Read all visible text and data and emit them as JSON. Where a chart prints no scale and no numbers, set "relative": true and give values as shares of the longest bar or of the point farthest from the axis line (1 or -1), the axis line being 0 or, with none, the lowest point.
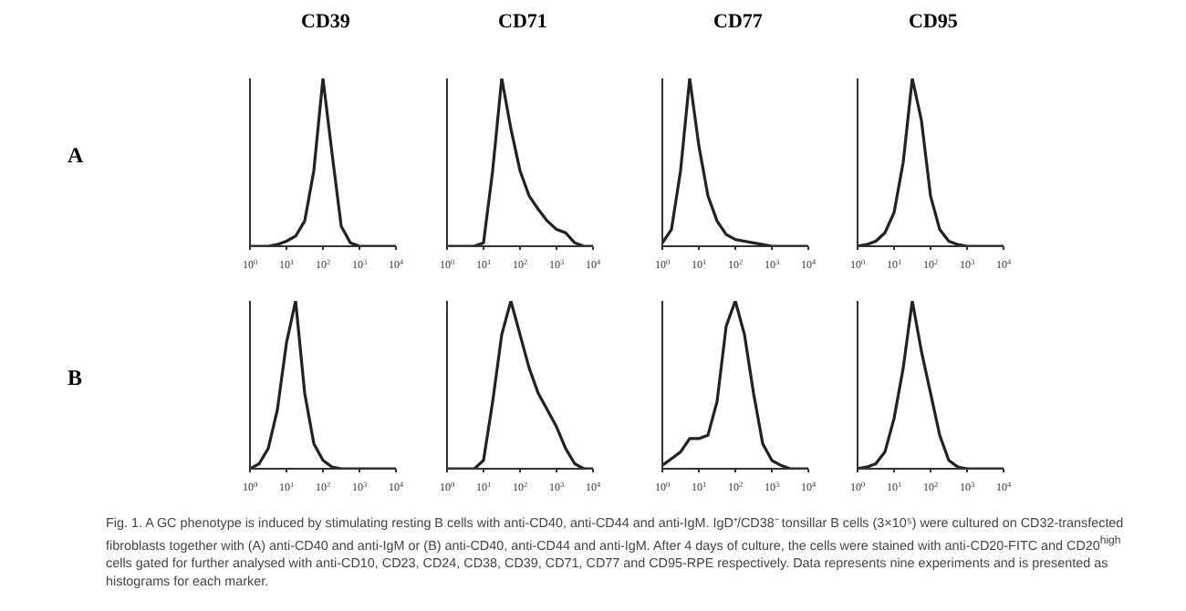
{
  "chart_data": [
    {
      "type": "line",
      "title": "CD39",
      "ylabel": "A",
      "relative": true,
      "log": "x",
      "xlim": [
        1,
        10000
      ],
      "xticks": [
        {
          "value": 1,
          "label": "10$^{0}$"
        },
        {
          "value": 10,
          "label": "10$^{1}$"
        },
        {
          "value": 100,
          "label": "10$^{2}$"
        },
        {
          "value": 1000,
          "label": "10$^{3}$"
        },
        {
          "value": 10000,
          "label": "10$^{4}$"
        }
      ],
      "x": [
        1,
        1.78,
        3.16,
        5.62,
        10,
        17.8,
        31.6,
        56.2,
        100,
        178,
        316,
        562,
        1000,
        1778,
        3162,
        5623,
        10000
      ],
      "color": "#222222",
      "values": [
        0,
        0,
        0,
        0.01,
        0.03,
        0.06,
        0.15,
        0.45,
        1,
        0.55,
        0.12,
        0.02,
        0,
        0,
        0,
        0,
        0
      ]
    },
    {
      "type": "line",
      "title": "CD71",
      "relative": true,
      "log": "x",
      "xlim": [
        1,
        10000
      ],
      "xticks": [
        {
          "value": 1,
          "label": "10$^{0}$"
        },
        {
          "value": 10,
          "label": "10$^{1}$"
        },
        {
          "value": 100,
          "label": "10$^{2}$"
        },
        {
          "value": 1000,
          "label": "10$^{3}$"
        },
        {
          "value": 10000,
          "label": "10$^{4}$"
        }
      ],
      "x": [
        1,
        1.78,
        3.16,
        5.62,
        10,
        17.8,
        31.6,
        56.2,
        100,
        178,
        316,
        562,
        1000,
        1778,
        3162,
        5623,
        10000
      ],
      "color": "#222222",
      "values": [
        0,
        0,
        0,
        0,
        0.02,
        0.45,
        1,
        0.7,
        0.45,
        0.3,
        0.22,
        0.15,
        0.1,
        0.08,
        0.02,
        0,
        0
      ]
    },
    {
      "type": "line",
      "title": "CD77",
      "relative": true,
      "log": "x",
      "xlim": [
        1,
        10000
      ],
      "xticks": [
        {
          "value": 1,
          "label": "10$^{0}$"
        },
        {
          "value": 10,
          "label": "10$^{1}$"
        },
        {
          "value": 100,
          "label": "10$^{2}$"
        },
        {
          "value": 1000,
          "label": "10$^{3}$"
        },
        {
          "value": 10000,
          "label": "10$^{4}$"
        }
      ],
      "x": [
        1,
        1.78,
        3.16,
        5.62,
        10,
        17.8,
        31.6,
        56.2,
        100,
        178,
        316,
        562,
        1000,
        1778,
        3162,
        5623,
        10000
      ],
      "color": "#222222",
      "values": [
        0.02,
        0.1,
        0.45,
        1,
        0.6,
        0.3,
        0.15,
        0.07,
        0.04,
        0.03,
        0.02,
        0.01,
        0,
        0,
        0,
        0,
        0
      ]
    },
    {
      "type": "line",
      "title": "CD95",
      "relative": true,
      "log": "x",
      "xlim": [
        1,
        10000
      ],
      "xticks": [
        {
          "value": 1,
          "label": "10$^{0}$"
        },
        {
          "value": 10,
          "label": "10$^{1}$"
        },
        {
          "value": 100,
          "label": "10$^{2}$"
        },
        {
          "value": 1000,
          "label": "10$^{3}$"
        },
        {
          "value": 10000,
          "label": "10$^{4}$"
        }
      ],
      "x": [
        1,
        1.78,
        3.16,
        5.62,
        10,
        17.8,
        31.6,
        56.2,
        100,
        178,
        316,
        562,
        1000,
        1778,
        3162,
        5623,
        10000
      ],
      "color": "#222222",
      "values": [
        0,
        0.01,
        0.03,
        0.08,
        0.2,
        0.5,
        1,
        0.75,
        0.3,
        0.1,
        0.03,
        0.01,
        0,
        0,
        0,
        0,
        0
      ]
    },
    {
      "type": "line",
      "ylabel": "B",
      "relative": true,
      "log": "x",
      "xlim": [
        1,
        10000
      ],
      "xticks": [
        {
          "value": 1,
          "label": "10$^{0}$"
        },
        {
          "value": 10,
          "label": "10$^{1}$"
        },
        {
          "value": 100,
          "label": "10$^{2}$"
        },
        {
          "value": 1000,
          "label": "10$^{3}$"
        },
        {
          "value": 10000,
          "label": "10$^{4}$"
        }
      ],
      "x": [
        1,
        1.78,
        3.16,
        5.62,
        10,
        17.8,
        31.6,
        56.2,
        100,
        178,
        316,
        562,
        1000,
        1778,
        3162,
        5623,
        10000
      ],
      "color": "#222222",
      "values": [
        0,
        0.03,
        0.12,
        0.35,
        0.75,
        1,
        0.45,
        0.15,
        0.05,
        0.01,
        0,
        0,
        0,
        0,
        0,
        0,
        0
      ]
    },
    {
      "type": "line",
      "relative": true,
      "log": "x",
      "xlim": [
        1,
        10000
      ],
      "xticks": [
        {
          "value": 1,
          "label": "10$^{0}$"
        },
        {
          "value": 10,
          "label": "10$^{1}$"
        },
        {
          "value": 100,
          "label": "10$^{2}$"
        },
        {
          "value": 1000,
          "label": "10$^{3}$"
        },
        {
          "value": 10000,
          "label": "10$^{4}$"
        }
      ],
      "x": [
        1,
        1.78,
        3.16,
        5.62,
        10,
        17.8,
        31.6,
        56.2,
        100,
        178,
        316,
        562,
        1000,
        1778,
        3162,
        5623,
        10000
      ],
      "color": "#222222",
      "values": [
        0,
        0,
        0,
        0,
        0.05,
        0.4,
        0.8,
        1,
        0.8,
        0.6,
        0.45,
        0.35,
        0.25,
        0.12,
        0.03,
        0,
        0
      ]
    },
    {
      "type": "line",
      "relative": true,
      "log": "x",
      "xlim": [
        1,
        10000
      ],
      "xticks": [
        {
          "value": 1,
          "label": "10$^{0}$"
        },
        {
          "value": 10,
          "label": "10$^{1}$"
        },
        {
          "value": 100,
          "label": "10$^{2}$"
        },
        {
          "value": 1000,
          "label": "10$^{3}$"
        },
        {
          "value": 10000,
          "label": "10$^{4}$"
        }
      ],
      "x": [
        1,
        1.78,
        3.16,
        5.62,
        10,
        17.8,
        31.6,
        56.2,
        100,
        178,
        316,
        562,
        1000,
        1778,
        3162,
        5623,
        10000
      ],
      "color": "#222222",
      "values": [
        0.02,
        0.06,
        0.1,
        0.18,
        0.18,
        0.2,
        0.4,
        0.85,
        1,
        0.8,
        0.45,
        0.15,
        0.05,
        0.02,
        0,
        0,
        0
      ]
    },
    {
      "type": "line",
      "relative": true,
      "log": "x",
      "xlim": [
        1,
        10000
      ],
      "xticks": [
        {
          "value": 1,
          "label": "10$^{0}$"
        },
        {
          "value": 10,
          "label": "10$^{1}$"
        },
        {
          "value": 100,
          "label": "10$^{2}$"
        },
        {
          "value": 1000,
          "label": "10$^{3}$"
        },
        {
          "value": 10000,
          "label": "10$^{4}$"
        }
      ],
      "x": [
        1,
        1.78,
        3.16,
        5.62,
        10,
        17.8,
        31.6,
        56.2,
        100,
        178,
        316,
        562,
        1000,
        1778,
        3162,
        5623,
        10000
      ],
      "color": "#222222",
      "values": [
        0,
        0.01,
        0.03,
        0.1,
        0.3,
        0.6,
        1,
        0.7,
        0.45,
        0.2,
        0.05,
        0.01,
        0,
        0,
        0,
        0,
        0
      ],
      "annotations": [
        "Fig. 1. A GC phenotype is induced by stimulating resting B cells with anti-CD40, anti-CD44 and anti-IgM. IgD⁺/CD38⁻ tonsillar B cells (3×10⁵) were cultured on CD32-transfected fibroblasts together with (A) anti-CD40 and anti-IgM or (B) anti-CD40, anti-CD44 and anti-IgM. After 4 days of culture, the cells were stained with anti-CD20-FITC and CD20$^{high}$ cells gated for further analysed with anti-CD10, CD23, CD24, CD38, CD39, CD71, CD77 and CD95-RPE respectively. Data represents nine experiments and is presented as histograms for each marker."
      ]
    }
  ]
}
